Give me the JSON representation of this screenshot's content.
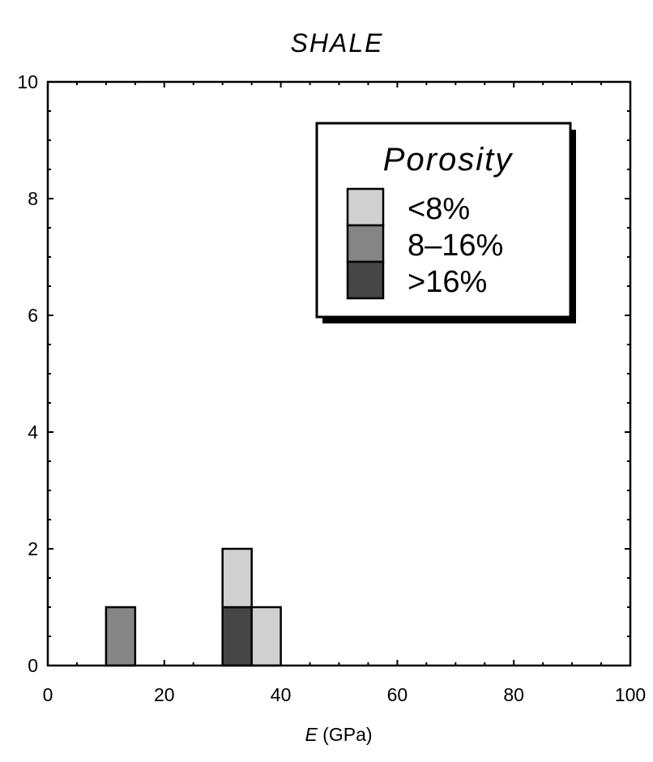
{
  "chart_data": {
    "type": "bar",
    "title": "SHALE",
    "xlabel_italic": "E",
    "xlabel_unit": " (GPa)",
    "ylabel": "",
    "xlim": [
      0,
      100
    ],
    "ylim": [
      0,
      10
    ],
    "xticks": [
      0,
      20,
      40,
      60,
      80,
      100
    ],
    "yticks": [
      0,
      2,
      4,
      6,
      8,
      10
    ],
    "bin_width": 5,
    "stacked": true,
    "grid": false,
    "legend": {
      "title": "Porosity",
      "placement": "top-right"
    },
    "series": [
      {
        "name": "<8%",
        "color": "#d0d0d0",
        "bins": [
          {
            "x0": 30,
            "x1": 35,
            "value": 1
          },
          {
            "x0": 35,
            "x1": 40,
            "value": 1
          }
        ]
      },
      {
        "name": "8–16%",
        "color": "#858585",
        "bins": [
          {
            "x0": 10,
            "x1": 15,
            "value": 1
          }
        ]
      },
      {
        "name": ">16%",
        "color": "#464646",
        "bins": [
          {
            "x0": 30,
            "x1": 35,
            "value": 1
          }
        ]
      }
    ],
    "stack_order": [
      ">16%",
      "8–16%",
      "<8%"
    ]
  }
}
